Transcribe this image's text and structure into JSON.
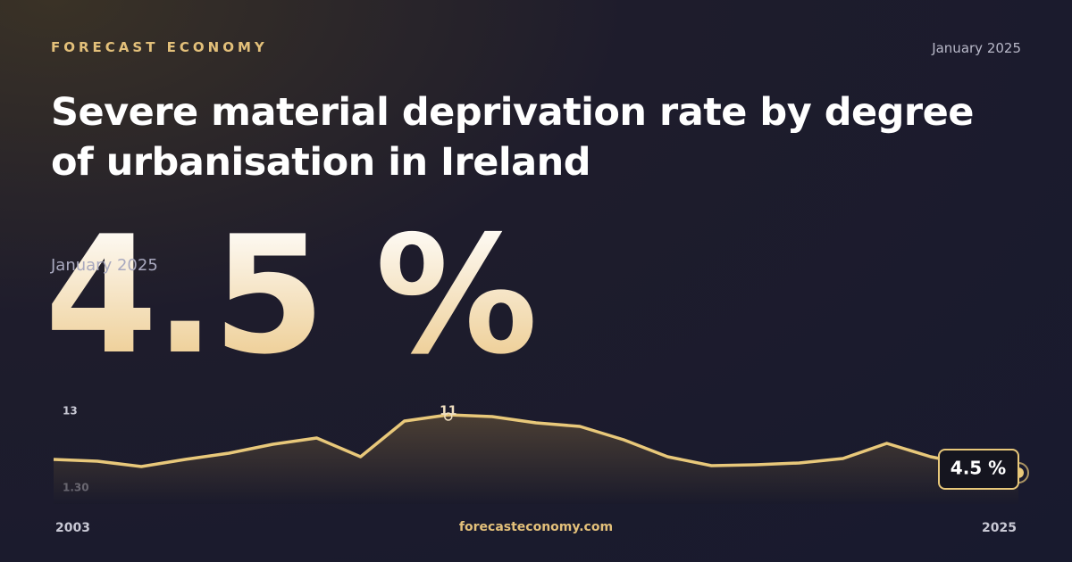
{
  "brand": "FORECAST ECONOMY",
  "date": "January 2025",
  "title": "Severe material deprivation rate by degree of urbanisation in Ireland",
  "headline": {
    "date": "January 2025",
    "value": "4.5 %"
  },
  "footer": {
    "site": "forecasteconomy.com"
  },
  "chart_data": {
    "type": "line",
    "x": [
      2003,
      2004,
      2005,
      2006,
      2007,
      2008,
      2009,
      2010,
      2011,
      2012,
      2013,
      2014,
      2015,
      2016,
      2017,
      2018,
      2019,
      2020,
      2021,
      2022,
      2023,
      2024,
      2025
    ],
    "values": [
      6.0,
      5.8,
      5.2,
      6.0,
      6.7,
      7.7,
      8.4,
      6.3,
      10.3,
      11,
      10.8,
      10.1,
      9.7,
      8.2,
      6.3,
      5.3,
      5.4,
      5.6,
      6.1,
      7.8,
      6.3,
      5.3,
      4.5
    ],
    "color": "#e8c87a",
    "xlim": [
      2003,
      2025
    ],
    "xticks": [
      2003,
      2025
    ],
    "ylim": [
      1.3,
      13
    ],
    "yticks": [
      {
        "value": 13,
        "label": "13"
      },
      {
        "value": 1.3,
        "label": "1.30"
      }
    ]
  }
}
